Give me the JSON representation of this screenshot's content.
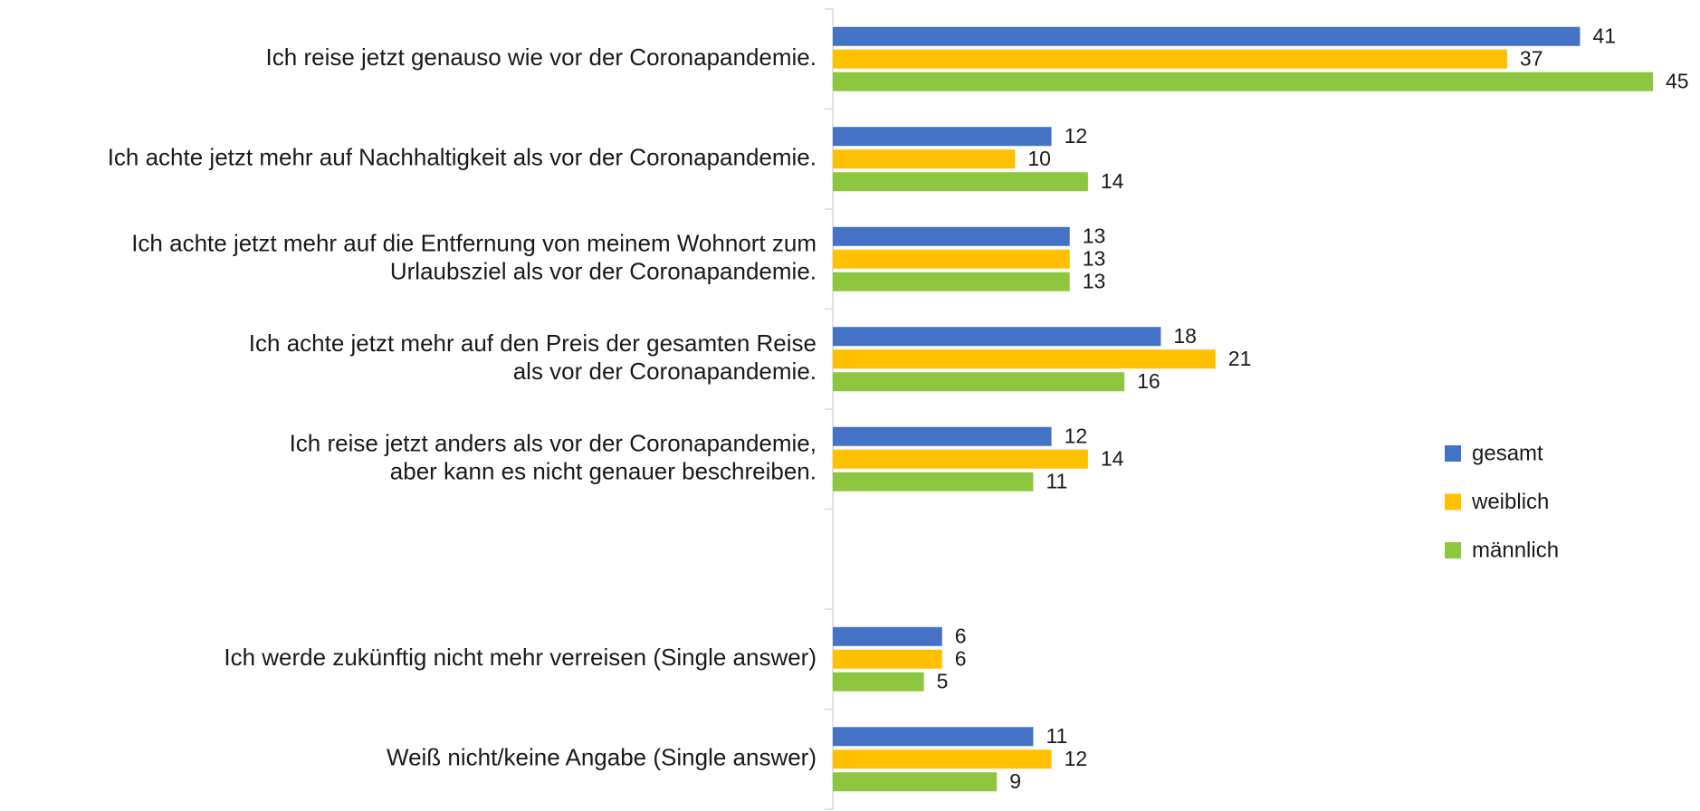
{
  "chart_data": {
    "type": "barh",
    "categories": [
      [
        "Ich reise jetzt genauso wie vor der Coronapandemie."
      ],
      [
        "Ich achte jetzt mehr auf Nachhaltigkeit als vor der Coronapandemie."
      ],
      [
        "Ich achte jetzt mehr auf die Entfernung von meinem Wohnort zum",
        "Urlaubsziel als vor der Coronapandemie."
      ],
      [
        "Ich achte jetzt mehr auf den Preis der gesamten Reise",
        "als vor der Coronapandemie."
      ],
      [
        "Ich reise jetzt anders als vor der Coronapandemie,",
        "aber kann es nicht genauer beschreiben."
      ],
      null,
      [
        "Ich werde zukünftig nicht mehr verreisen (Single answer)"
      ],
      [
        "Weiß nicht/keine Angabe (Single answer)"
      ]
    ],
    "series": [
      {
        "name": "gesamt",
        "color": "#4472c4",
        "values": [
          41,
          12,
          13,
          18,
          12,
          null,
          6,
          11
        ]
      },
      {
        "name": "weiblich",
        "color": "#ffc000",
        "values": [
          37,
          10,
          13,
          21,
          14,
          null,
          6,
          12
        ]
      },
      {
        "name": "männlich",
        "color": "#8dc63f",
        "values": [
          45,
          14,
          13,
          16,
          11,
          null,
          5,
          9
        ]
      }
    ],
    "xlim": [
      0,
      45
    ],
    "legend": "right"
  }
}
